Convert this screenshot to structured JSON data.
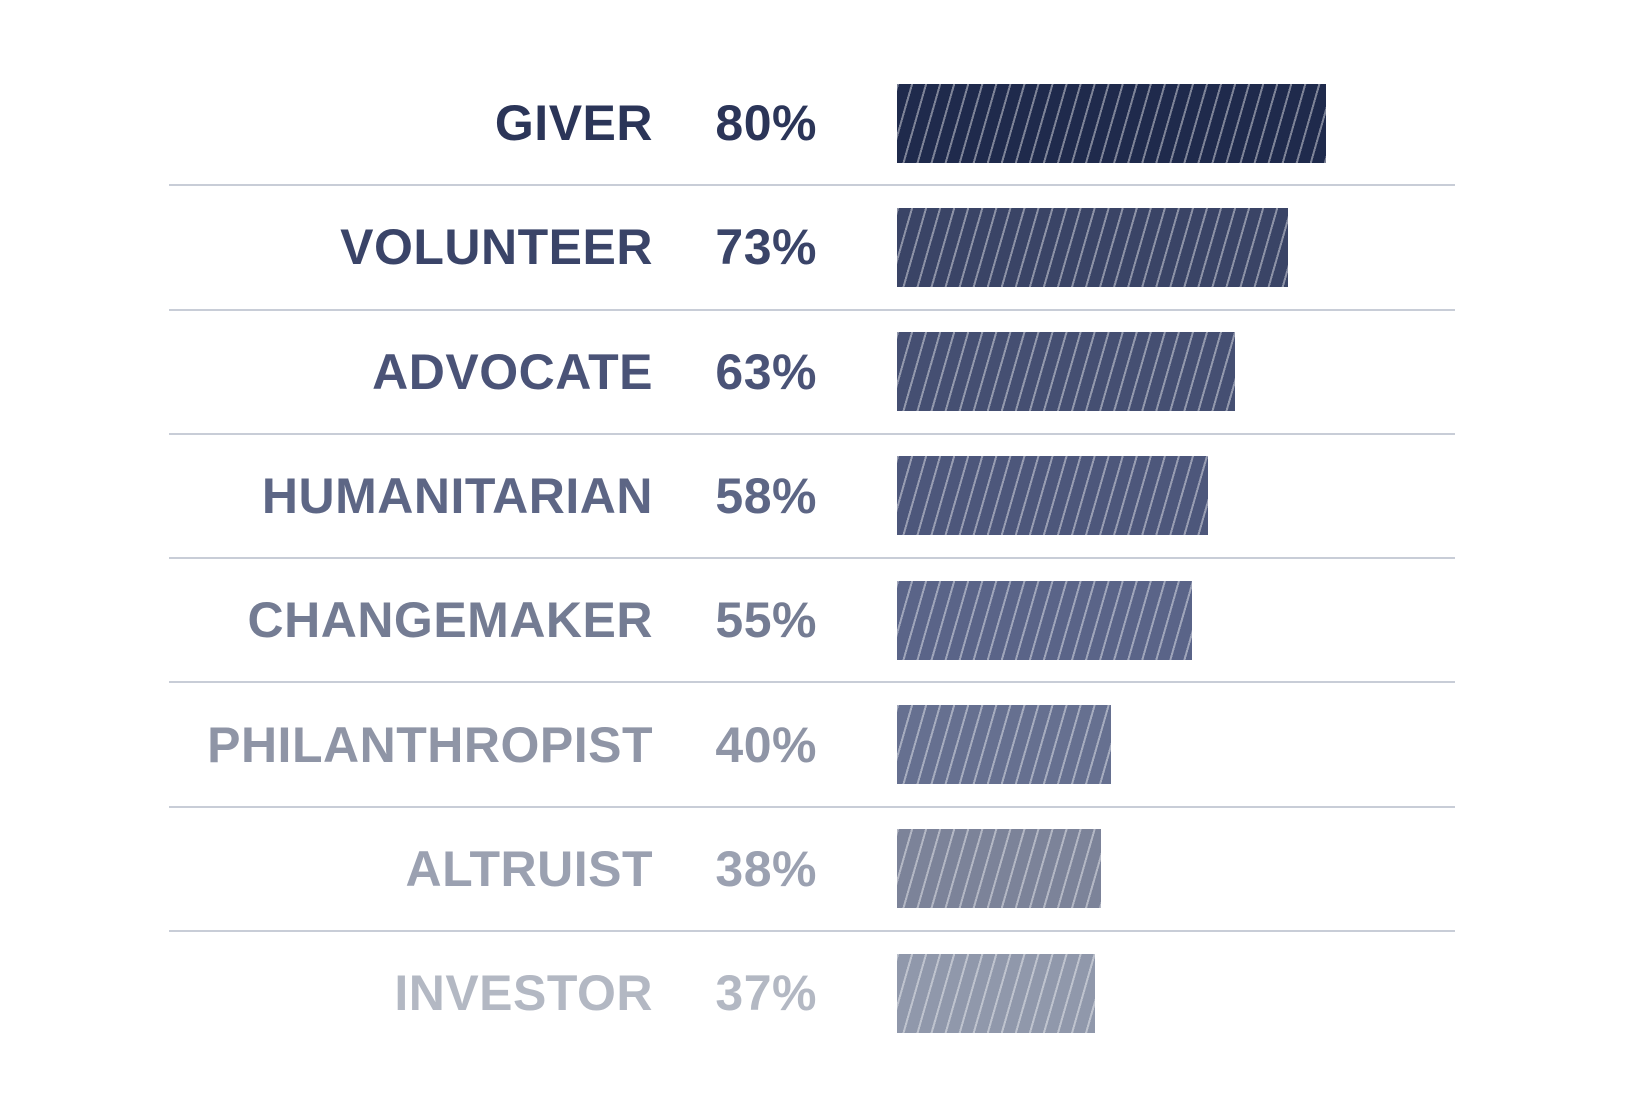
{
  "chart_data": {
    "type": "bar",
    "orientation": "horizontal",
    "title": "",
    "xlabel": "",
    "ylabel": "",
    "xlim": [
      0,
      100
    ],
    "grid": false,
    "legend": false,
    "hatch_style": "thin diagonal lines bottom-left to top-right",
    "categories": [
      "GIVER",
      "VOLUNTEER",
      "ADVOCATE",
      "HUMANITARIAN",
      "CHANGEMAKER",
      "PHILANTHROPIST",
      "ALTRUIST",
      "INVESTOR"
    ],
    "values": [
      80,
      73,
      63,
      58,
      55,
      40,
      38,
      37
    ],
    "value_labels": [
      "80%",
      "73%",
      "63%",
      "58%",
      "55%",
      "40%",
      "38%",
      "37%"
    ],
    "bar_colors": [
      "#1f2a4c",
      "#3a4466",
      "#454f72",
      "#4d577b",
      "#5a6488",
      "#667090",
      "#7c8399",
      "#9098ab"
    ],
    "label_colors": [
      "#2b3558",
      "#3a4468",
      "#4a5377",
      "#5d6685",
      "#747c93",
      "#8f95a6",
      "#9ba1b1",
      "#b3b8c3"
    ],
    "separator_color": "#c8cdd7",
    "background_color": "#ffffff",
    "pixels_per_percent": 5.36
  }
}
